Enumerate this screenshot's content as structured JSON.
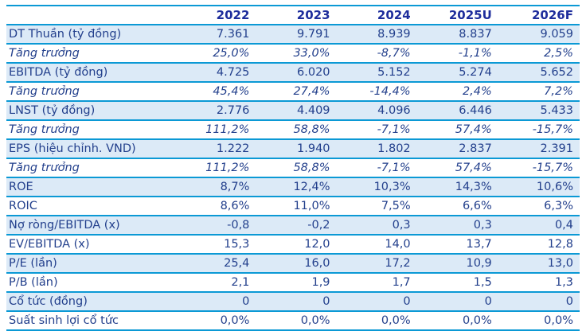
{
  "colors": {
    "border": "#0B99D5",
    "stripe": "#DCEAF7",
    "header_text": "#1E2D9C",
    "body_text": "#223F8C",
    "background": "#FFFFFF"
  },
  "chart_data": {
    "type": "table",
    "title": "",
    "columns": [
      "",
      "2022",
      "2023",
      "2024",
      "2025U",
      "2026F"
    ],
    "rows": [
      {
        "label": "DT Thuần (tỷ đồng)",
        "values": [
          "7.361",
          "9.791",
          "8.939",
          "8.837",
          "9.059"
        ],
        "shaded": true,
        "italic": false
      },
      {
        "label": "Tăng trưởng",
        "values": [
          "25,0%",
          "33,0%",
          "-8,7%",
          "-1,1%",
          "2,5%"
        ],
        "shaded": false,
        "italic": true
      },
      {
        "label": "EBITDA (tỷ đồng)",
        "values": [
          "4.725",
          "6.020",
          "5.152",
          "5.274",
          "5.652"
        ],
        "shaded": true,
        "italic": false
      },
      {
        "label": "Tăng trưởng",
        "values": [
          "45,4%",
          "27,4%",
          "-14,4%",
          "2,4%",
          "7,2%"
        ],
        "shaded": false,
        "italic": true
      },
      {
        "label": "LNST (tỷ đồng)",
        "values": [
          "2.776",
          "4.409",
          "4.096",
          "6.446",
          "5.433"
        ],
        "shaded": true,
        "italic": false
      },
      {
        "label": "Tăng trưởng",
        "values": [
          "111,2%",
          "58,8%",
          "-7,1%",
          "57,4%",
          "-15,7%"
        ],
        "shaded": false,
        "italic": true
      },
      {
        "label": "EPS (hiệu chỉnh. VND)",
        "values": [
          "1.222",
          "1.940",
          "1.802",
          "2.837",
          "2.391"
        ],
        "shaded": true,
        "italic": false
      },
      {
        "label": "Tăng trưởng",
        "values": [
          "111,2%",
          "58,8%",
          "-7,1%",
          "57,4%",
          "-15,7%"
        ],
        "shaded": false,
        "italic": true
      },
      {
        "label": "ROE",
        "values": [
          "8,7%",
          "12,4%",
          "10,3%",
          "14,3%",
          "10,6%"
        ],
        "shaded": true,
        "italic": false
      },
      {
        "label": "ROIC",
        "values": [
          "8,6%",
          "11,0%",
          "7,5%",
          "6,6%",
          "6,3%"
        ],
        "shaded": false,
        "italic": false
      },
      {
        "label": "Nợ ròng/EBITDA (x)",
        "values": [
          "-0,8",
          "-0,2",
          "0,3",
          "0,3",
          "0,4"
        ],
        "shaded": true,
        "italic": false
      },
      {
        "label": "EV/EBITDA (x)",
        "values": [
          "15,3",
          "12,0",
          "14,0",
          "13,7",
          "12,8"
        ],
        "shaded": false,
        "italic": false
      },
      {
        "label": "P/E (lần)",
        "values": [
          "25,4",
          "16,0",
          "17,2",
          "10,9",
          "13,0"
        ],
        "shaded": true,
        "italic": false
      },
      {
        "label": "P/B (lần)",
        "values": [
          "2,1",
          "1,9",
          "1,7",
          "1,5",
          "1,3"
        ],
        "shaded": false,
        "italic": false
      },
      {
        "label": "Cổ tức (đồng)",
        "values": [
          "0",
          "0",
          "0",
          "0",
          "0"
        ],
        "shaded": true,
        "italic": false
      },
      {
        "label": "Suất sinh lợi cổ tức",
        "values": [
          "0,0%",
          "0,0%",
          "0,0%",
          "0,0%",
          "0,0%"
        ],
        "shaded": false,
        "italic": false
      }
    ]
  }
}
